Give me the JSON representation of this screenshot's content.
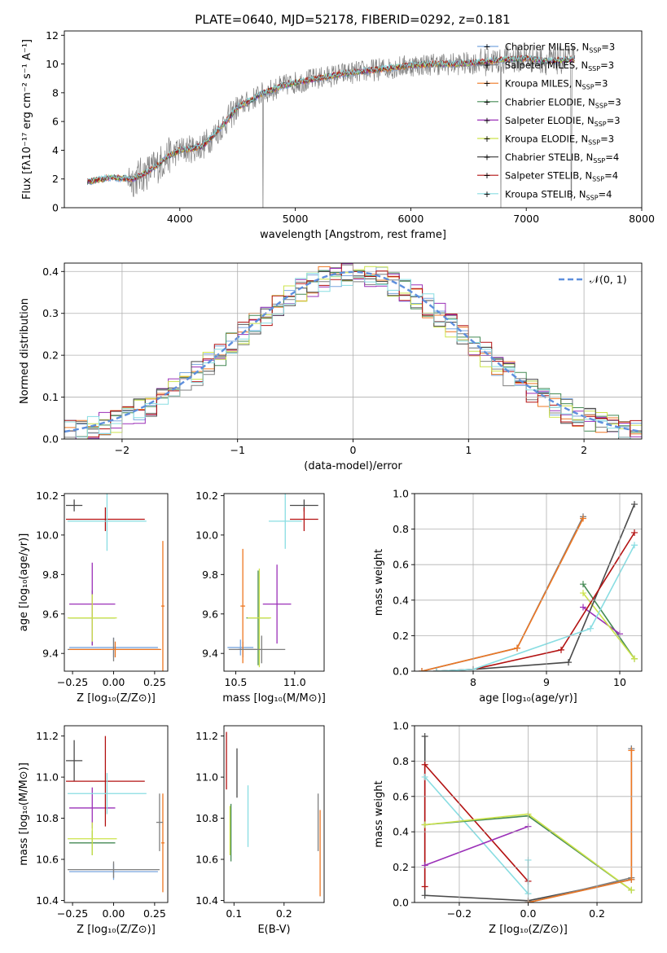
{
  "figure_title": "PLATE=0640, MJD=52178, FIBERID=0292, z=0.181",
  "colors": {
    "chab_miles": "#7aa6df",
    "salp_miles": "#7f7f7f",
    "krou_miles": "#ee7722",
    "chab_elodie": "#458a55",
    "salp_elodie": "#9b30b8",
    "krou_elodie": "#cce34a",
    "chab_stelib": "#4a4a4a",
    "salp_stelib": "#b31212",
    "krou_stelib": "#88dde2",
    "data": "#808080",
    "normal": "#5e8fdd"
  },
  "chart_data": [
    {
      "id": "spectrum",
      "type": "line",
      "xlabel": "wavelength [Angstrom, rest frame]",
      "ylabel": "Flux [fλ10⁻¹⁷ erg cm⁻² s⁻¹ A⁻¹]",
      "xlim": [
        3000,
        8000
      ],
      "ylim": [
        0,
        12.3
      ],
      "xticks": [
        "4000",
        "5000",
        "6000",
        "7000",
        "8000"
      ],
      "yticks": [
        "0",
        "2",
        "4",
        "6",
        "8",
        "10",
        "12"
      ],
      "legend_position": "upper right",
      "legend": [
        {
          "name": "Chabrier MILES, N_SSP=3",
          "color_key": "chab_miles"
        },
        {
          "name": "Salpeter MILES, N_SSP=3",
          "color_key": "salp_miles"
        },
        {
          "name": "Kroupa MILES, N_SSP=3",
          "color_key": "krou_miles"
        },
        {
          "name": "Chabrier ELODIE, N_SSP=3",
          "color_key": "chab_elodie"
        },
        {
          "name": "Salpeter ELODIE, N_SSP=3",
          "color_key": "salp_elodie"
        },
        {
          "name": "Kroupa ELODIE, N_SSP=3",
          "color_key": "krou_elodie"
        },
        {
          "name": "Chabrier STELIB, N_SSP=4",
          "color_key": "chab_stelib"
        },
        {
          "name": "Salpeter STELIB, N_SSP=4",
          "color_key": "salp_stelib"
        },
        {
          "name": "Kroupa STELIB, N_SSP=4",
          "color_key": "krou_stelib"
        }
      ],
      "model_continuum": {
        "x": [
          3200,
          3400,
          3600,
          3700,
          3800,
          3900,
          4000,
          4100,
          4200,
          4300,
          4400,
          4500,
          4600,
          4700,
          4800,
          4900,
          5000,
          5200,
          5400,
          5600,
          5800,
          6000,
          6200,
          6400,
          6600,
          6800,
          7000,
          7200,
          7400
        ],
        "y": [
          1.8,
          2.1,
          2.0,
          2.4,
          2.9,
          3.6,
          4.0,
          4.1,
          4.3,
          5.1,
          6.0,
          7.0,
          7.4,
          7.9,
          8.2,
          8.5,
          8.7,
          9.0,
          9.3,
          9.5,
          9.7,
          9.9,
          10.0,
          10.0,
          10.1,
          10.3,
          10.4,
          10.2,
          10.3
        ]
      }
    },
    {
      "id": "residual_hist",
      "type": "line",
      "xlabel": "(data-model)/error",
      "ylabel": "Normed distribution",
      "xlim": [
        -2.5,
        2.5
      ],
      "ylim": [
        0,
        0.42
      ],
      "xticks": [
        "-2",
        "-1",
        "0",
        "1",
        "2"
      ],
      "yticks": [
        "0.0",
        "0.1",
        "0.2",
        "0.3",
        "0.4"
      ],
      "legend_position": "upper right",
      "legend": [
        {
          "name": "𝒩(0, 1)",
          "color_key": "normal"
        }
      ],
      "bin_width": 0.1
    },
    {
      "id": "age_vs_Z",
      "type": "scatter",
      "xlabel": "Z [log₁₀(Z/Z⊙)]",
      "ylabel": "age  [log₁₀(age/yr)]",
      "xlim": [
        -0.3,
        0.33
      ],
      "ylim": [
        9.31,
        10.21
      ],
      "xticks": [
        "-0.25",
        "0.00",
        "0.25"
      ],
      "yticks": [
        "9.4",
        "9.6",
        "9.8",
        "10.0",
        "10.2"
      ],
      "points": [
        {
          "model": "chab_miles",
          "x": 0.0,
          "xerr": 0.27,
          "y": 9.43,
          "yerr": 0.05
        },
        {
          "model": "salp_miles",
          "x": 0.0,
          "xerr": 0.28,
          "y": 9.42,
          "yerr": 0.06
        },
        {
          "model": "krou_miles",
          "x": 0.3,
          "xerr": 0.01,
          "y": 9.64,
          "yerr": 0.33
        },
        {
          "model": "krou_miles",
          "x": 0.01,
          "xerr": 0.28,
          "y": 9.42,
          "yerr": 0.04
        },
        {
          "model": "chab_elodie",
          "x": -0.13,
          "xerr": 0.14,
          "y": 9.58,
          "yerr": 0.14
        },
        {
          "model": "salp_elodie",
          "x": -0.13,
          "xerr": 0.14,
          "y": 9.65,
          "yerr": 0.21
        },
        {
          "model": "krou_elodie",
          "x": -0.13,
          "xerr": 0.15,
          "y": 9.58,
          "yerr": 0.12
        },
        {
          "model": "chab_stelib",
          "x": -0.24,
          "xerr": 0.05,
          "y": 10.15,
          "yerr": 0.03
        },
        {
          "model": "salp_stelib",
          "x": -0.05,
          "xerr": 0.24,
          "y": 10.08,
          "yerr": 0.06
        },
        {
          "model": "krou_stelib",
          "x": -0.04,
          "xerr": 0.24,
          "y": 10.07,
          "yerr": 0.15
        }
      ]
    },
    {
      "id": "age_vs_mass",
      "type": "scatter",
      "xlabel": "mass [log₁₀(M/M⊙)]",
      "ylabel": "",
      "xlim": [
        10.4,
        11.25
      ],
      "ylim": [
        9.31,
        10.21
      ],
      "xticks": [
        "10.5",
        "11.0"
      ],
      "yticks": [
        "9.4",
        "9.6",
        "9.8",
        "10.0",
        "10.2"
      ],
      "points": [
        {
          "model": "chab_miles",
          "x": 10.54,
          "xerr": 0.11,
          "y": 9.43,
          "yerr": 0.04
        },
        {
          "model": "salp_miles",
          "x": 10.56,
          "xerr": 0.12,
          "y": 9.42,
          "yerr": 0.04
        },
        {
          "model": "krou_miles",
          "x": 10.56,
          "xerr": 0.02,
          "y": 9.64,
          "yerr": 0.29
        },
        {
          "model": "chab_elodie",
          "x": 10.69,
          "xerr": 0.1,
          "y": 9.58,
          "yerr": 0.24
        },
        {
          "model": "salp_elodie",
          "x": 10.85,
          "xerr": 0.12,
          "y": 9.65,
          "yerr": 0.2
        },
        {
          "model": "krou_elodie",
          "x": 10.7,
          "xerr": 0.1,
          "y": 9.58,
          "yerr": 0.25
        },
        {
          "model": "chab_stelib",
          "x": 11.08,
          "xerr": 0.12,
          "y": 10.15,
          "yerr": 0.03
        },
        {
          "model": "salp_stelib",
          "x": 11.08,
          "xerr": 0.12,
          "y": 10.08,
          "yerr": 0.06
        },
        {
          "model": "krou_stelib",
          "x": 10.92,
          "xerr": 0.14,
          "y": 10.07,
          "yerr": 0.14
        },
        {
          "model": "salp_miles",
          "x": 10.72,
          "xerr": 0.2,
          "y": 9.42,
          "yerr": 0.07
        }
      ]
    },
    {
      "id": "massweight_vs_age",
      "type": "line",
      "xlabel": "age  [log₁₀(age/yr)]",
      "ylabel": "mass weight",
      "xlim": [
        7.2,
        10.3
      ],
      "ylim": [
        0,
        1
      ],
      "xticks": [
        "8",
        "9",
        "10"
      ],
      "yticks": [
        "0.0",
        "0.2",
        "0.4",
        "0.6",
        "0.8",
        "1.0"
      ],
      "series": [
        {
          "model": "chab_miles",
          "x": [
            7.3,
            8.6,
            9.5
          ],
          "y": [
            0.0,
            0.13,
            0.87
          ]
        },
        {
          "model": "salp_miles",
          "x": [
            7.3,
            8.6,
            9.5
          ],
          "y": [
            0.0,
            0.13,
            0.87
          ]
        },
        {
          "model": "krou_miles",
          "x": [
            7.3,
            8.6,
            9.5
          ],
          "y": [
            0.0,
            0.13,
            0.86
          ]
        },
        {
          "model": "chab_elodie",
          "x": [
            9.5,
            10.2
          ],
          "y": [
            0.49,
            0.07
          ]
        },
        {
          "model": "salp_elodie",
          "x": [
            9.5,
            10.0
          ],
          "y": [
            0.36,
            0.21
          ]
        },
        {
          "model": "krou_elodie",
          "x": [
            9.5,
            10.2
          ],
          "y": [
            0.44,
            0.07
          ]
        },
        {
          "model": "chab_stelib",
          "x": [
            7.5,
            8.0,
            9.3,
            10.2
          ],
          "y": [
            0.0,
            0.01,
            0.05,
            0.94
          ]
        },
        {
          "model": "salp_stelib",
          "x": [
            7.5,
            8.0,
            9.2,
            10.2
          ],
          "y": [
            0.0,
            0.01,
            0.12,
            0.78
          ]
        },
        {
          "model": "krou_stelib",
          "x": [
            7.5,
            8.0,
            9.6,
            10.2
          ],
          "y": [
            0.0,
            0.01,
            0.24,
            0.71
          ]
        }
      ]
    },
    {
      "id": "mass_vs_Z",
      "type": "scatter",
      "xlabel": "Z [log₁₀(Z/Z⊙)]",
      "ylabel": "mass [log₁₀(M/M⊙)]",
      "xlim": [
        -0.3,
        0.33
      ],
      "ylim": [
        10.39,
        11.25
      ],
      "xticks": [
        "-0.25",
        "0.00",
        "0.25"
      ],
      "yticks": [
        "10.4",
        "10.6",
        "10.8",
        "11.0",
        "11.2"
      ],
      "points": [
        {
          "model": "chab_miles",
          "x": 0.0,
          "xerr": 0.27,
          "y": 10.54,
          "yerr": 0.04
        },
        {
          "model": "salp_miles",
          "x": 0.0,
          "xerr": 0.28,
          "y": 10.55,
          "yerr": 0.04
        },
        {
          "model": "krou_miles",
          "x": 0.3,
          "xerr": 0.01,
          "y": 10.68,
          "yerr": 0.24
        },
        {
          "model": "salp_miles",
          "x": 0.28,
          "xerr": 0.02,
          "y": 10.78,
          "yerr": 0.14
        },
        {
          "model": "chab_elodie",
          "x": -0.13,
          "xerr": 0.14,
          "y": 10.68,
          "yerr": 0.06
        },
        {
          "model": "salp_elodie",
          "x": -0.13,
          "xerr": 0.14,
          "y": 10.85,
          "yerr": 0.1
        },
        {
          "model": "krou_elodie",
          "x": -0.13,
          "xerr": 0.15,
          "y": 10.7,
          "yerr": 0.08
        },
        {
          "model": "chab_stelib",
          "x": -0.24,
          "xerr": 0.05,
          "y": 11.08,
          "yerr": 0.1
        },
        {
          "model": "salp_stelib",
          "x": -0.05,
          "xerr": 0.24,
          "y": 10.98,
          "yerr": 0.22
        },
        {
          "model": "krou_stelib",
          "x": -0.04,
          "xerr": 0.24,
          "y": 10.92,
          "yerr": 0.1
        }
      ]
    },
    {
      "id": "mass_vs_ebv",
      "type": "scatter",
      "xlabel": "E(B-V)",
      "ylabel": "",
      "xlim": [
        0.08,
        0.28
      ],
      "ylim": [
        10.39,
        11.25
      ],
      "xticks": [
        "0.1",
        "0.2"
      ],
      "yticks": [
        "10.4",
        "10.6",
        "10.8",
        "11.0",
        "11.2"
      ],
      "points": [
        {
          "model": "salp_stelib",
          "x": 0.085,
          "xerr": 0,
          "y": 11.08,
          "yerr": 0.14
        },
        {
          "model": "chab_stelib",
          "x": 0.106,
          "xerr": 0,
          "y": 11.02,
          "yerr": 0.12
        },
        {
          "model": "krou_elodie",
          "x": 0.092,
          "xerr": 0,
          "y": 10.74,
          "yerr": 0.12
        },
        {
          "model": "chab_elodie",
          "x": 0.094,
          "xerr": 0,
          "y": 10.73,
          "yerr": 0.14
        },
        {
          "model": "krou_stelib",
          "x": 0.128,
          "xerr": 0,
          "y": 10.81,
          "yerr": 0.15
        },
        {
          "model": "salp_miles",
          "x": 0.268,
          "xerr": 0,
          "y": 10.78,
          "yerr": 0.14
        },
        {
          "model": "krou_miles",
          "x": 0.272,
          "xerr": 0,
          "y": 10.63,
          "yerr": 0.21
        }
      ]
    },
    {
      "id": "massweight_vs_Z",
      "type": "line",
      "xlabel": "Z [log₁₀(Z/Z⊙)]",
      "ylabel": "mass weight",
      "xlim": [
        -0.33,
        0.33
      ],
      "ylim": [
        0,
        1
      ],
      "xticks": [
        "-0.2",
        "0.0",
        "0.2"
      ],
      "yticks": [
        "0.0",
        "0.2",
        "0.4",
        "0.6",
        "0.8",
        "1.0"
      ],
      "series": [
        {
          "model": "chab_stelib",
          "x": [
            -0.3,
            -0.3,
            0.0,
            0.3
          ],
          "y": [
            0.94,
            0.04,
            0.01,
            0.13
          ]
        },
        {
          "model": "salp_stelib",
          "x": [
            -0.3,
            -0.3,
            0.0,
            0.0
          ],
          "y": [
            0.09,
            0.78,
            0.12,
            0.12
          ]
        },
        {
          "model": "krou_stelib",
          "x": [
            -0.3,
            0.0,
            0.0
          ],
          "y": [
            0.71,
            0.05,
            0.24
          ]
        },
        {
          "model": "salp_elodie",
          "x": [
            -0.3,
            0.0
          ],
          "y": [
            0.21,
            0.43
          ]
        },
        {
          "model": "chab_elodie",
          "x": [
            -0.3,
            0.0,
            0.3
          ],
          "y": [
            0.44,
            0.49,
            0.07
          ]
        },
        {
          "model": "krou_elodie",
          "x": [
            -0.3,
            0.0,
            0.3
          ],
          "y": [
            0.44,
            0.5,
            0.07
          ]
        },
        {
          "model": "chab_miles",
          "x": [
            0.0,
            0.3,
            0.3
          ],
          "y": [
            0.0,
            0.13,
            0.87
          ]
        },
        {
          "model": "salp_miles",
          "x": [
            0.0,
            0.3,
            0.3
          ],
          "y": [
            0.0,
            0.14,
            0.87
          ]
        },
        {
          "model": "krou_miles",
          "x": [
            0.0,
            0.3,
            0.3
          ],
          "y": [
            0.0,
            0.13,
            0.86
          ]
        }
      ]
    }
  ]
}
